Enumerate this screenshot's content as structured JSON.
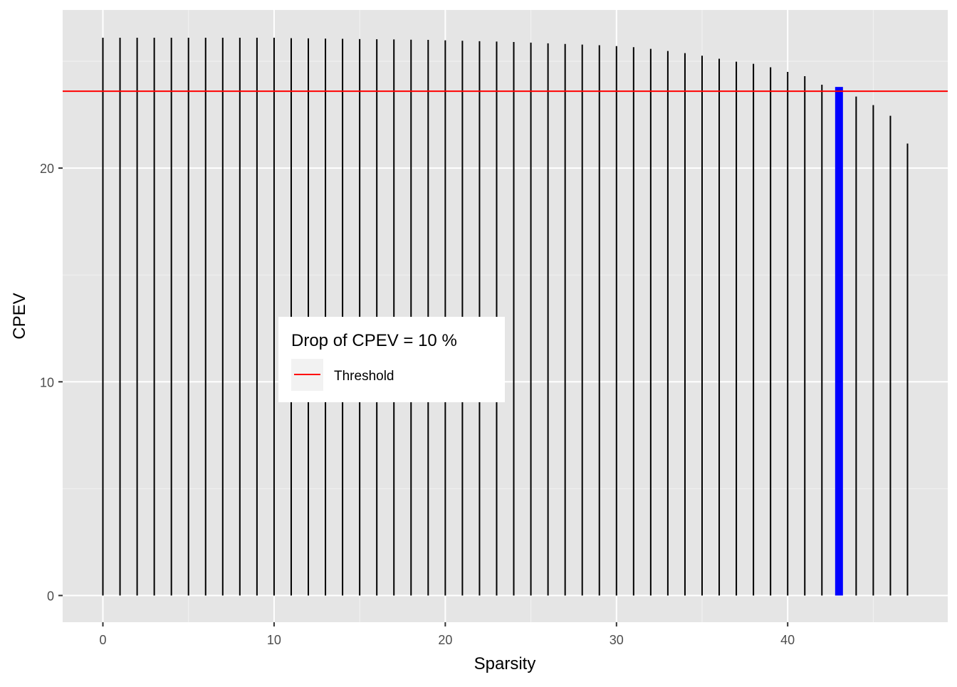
{
  "chart_data": {
    "type": "bar",
    "xlabel": "Sparsity",
    "ylabel": "CPEV",
    "x_ticks": [
      "0",
      "10",
      "20",
      "30",
      "40"
    ],
    "y_ticks": [
      "0",
      "10",
      "20"
    ],
    "xlim": [
      -2.35,
      49.35
    ],
    "ylim": [
      -1.25,
      27.4
    ],
    "grid": true,
    "x": [
      0,
      1,
      2,
      3,
      4,
      5,
      6,
      7,
      8,
      9,
      10,
      11,
      12,
      13,
      14,
      15,
      16,
      17,
      18,
      19,
      20,
      21,
      22,
      23,
      24,
      25,
      26,
      27,
      28,
      29,
      30,
      31,
      32,
      33,
      34,
      35,
      36,
      37,
      38,
      39,
      40,
      41,
      42,
      43,
      44,
      45,
      46,
      47
    ],
    "values": [
      26.1,
      26.1,
      26.1,
      26.1,
      26.1,
      26.1,
      26.1,
      26.1,
      26.1,
      26.1,
      26.1,
      26.08,
      26.07,
      26.06,
      26.05,
      26.04,
      26.03,
      26.02,
      26.01,
      26.0,
      25.98,
      25.96,
      25.94,
      25.92,
      25.9,
      25.87,
      25.84,
      25.81,
      25.78,
      25.75,
      25.71,
      25.66,
      25.58,
      25.48,
      25.38,
      25.26,
      25.12,
      24.98,
      24.88,
      24.72,
      24.5,
      24.3,
      23.9,
      23.8,
      23.35,
      22.95,
      22.45,
      21.15
    ],
    "highlight": {
      "x": 43,
      "color": "#0000ff"
    },
    "bar_color": "#000000",
    "threshold": {
      "value": 23.6,
      "color": "#ff0000",
      "label": "Threshold"
    },
    "legend": {
      "title": "Drop of CPEV = 10 %",
      "position": "center"
    }
  }
}
